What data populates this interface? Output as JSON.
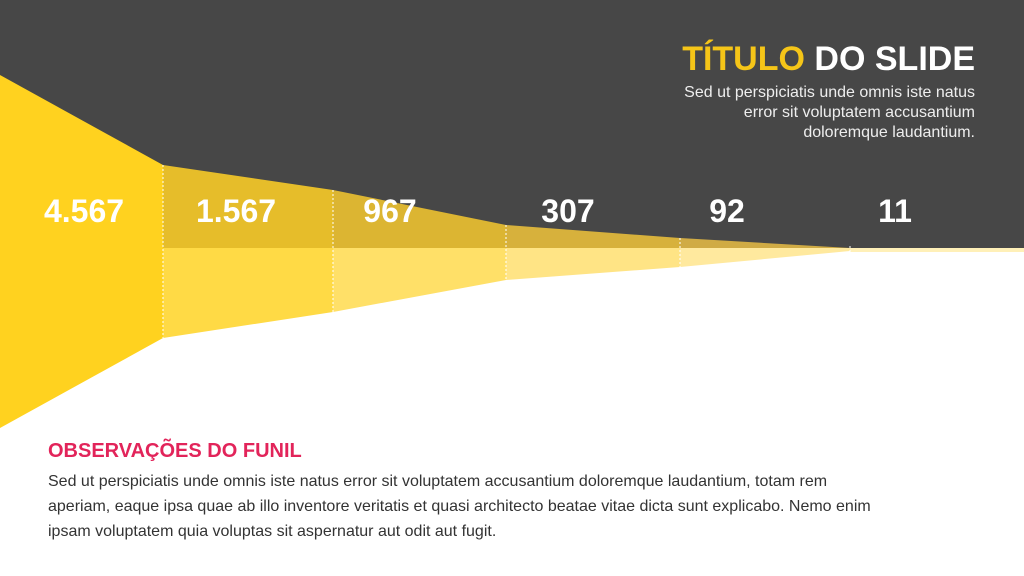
{
  "header": {
    "title_highlight": "TÍTULO",
    "title_rest": "DO SLIDE",
    "subtitle_lines": [
      "Sed ut perspiciatis unde omnis iste natus",
      "error sit voluptatem accusantium",
      "doloremque laudantium."
    ]
  },
  "funnel": {
    "stages": [
      "4.567",
      "1.567",
      "967",
      "307",
      "92",
      "11"
    ]
  },
  "notes": {
    "heading": "OBSERVAÇÕES DO FUNIL",
    "lines": [
      "Sed ut perspiciatis unde omnis iste natus error sit voluptatem accusantium doloremque laudantium, totam rem",
      "aperiam, eaque ipsa quae ab illo inventore veritatis et quasi architecto beatae vitae dicta sunt explicabo. Nemo enim",
      "ipsam voluptatem quia voluptas sit aspernatur aut odit aut fugit."
    ]
  }
}
